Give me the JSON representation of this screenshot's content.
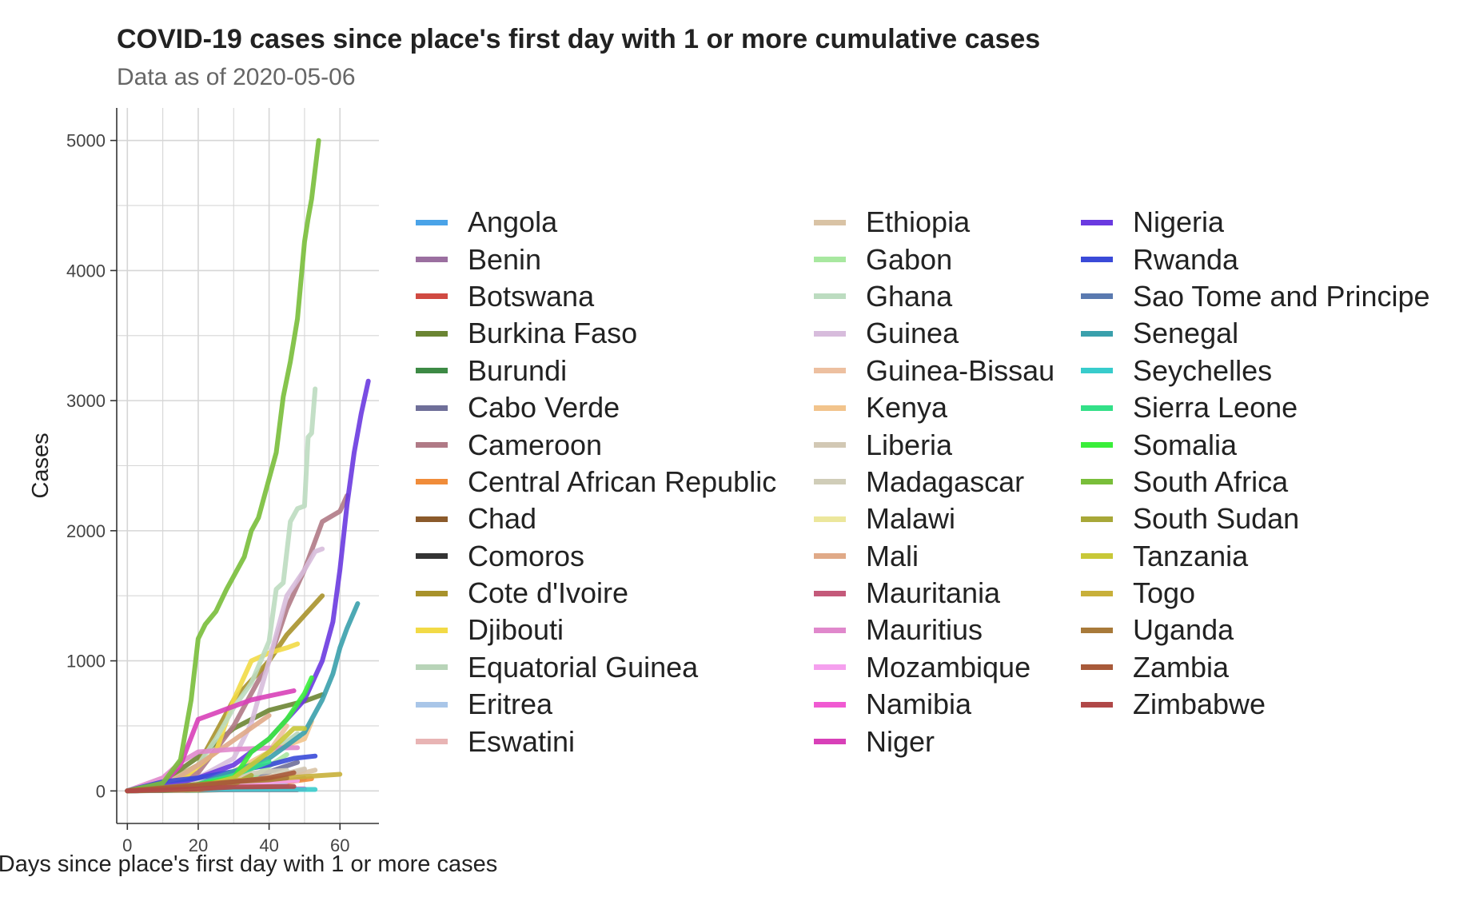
{
  "chart_data": {
    "type": "line",
    "title": "COVID-19 cases since place's first day with 1 or more cumulative cases",
    "subtitle": "Data as of 2020-05-06",
    "xlabel": "Days since place's first day with 1 or more cases",
    "ylabel": "Cases",
    "xlim": [
      -3,
      71
    ],
    "ylim": [
      -250,
      5250
    ],
    "x_ticks": [
      0,
      20,
      40,
      60
    ],
    "y_ticks": [
      0,
      1000,
      2000,
      3000,
      4000,
      5000
    ],
    "grid": true,
    "legend_placement": "right",
    "series": [
      {
        "name": "Angola",
        "color": "#4aa3e8",
        "x": [
          0,
          20,
          40,
          45
        ],
        "y": [
          1,
          10,
          30,
          36
        ]
      },
      {
        "name": "Benin",
        "color": "#9b6fa0",
        "x": [
          0,
          20,
          40,
          50
        ],
        "y": [
          1,
          20,
          60,
          96
        ]
      },
      {
        "name": "Botswana",
        "color": "#d04a42",
        "x": [
          0,
          20,
          38
        ],
        "y": [
          1,
          10,
          23
        ]
      },
      {
        "name": "Burkina Faso",
        "color": "#6b8533",
        "x": [
          0,
          10,
          20,
          30,
          40,
          50,
          55
        ],
        "y": [
          1,
          70,
          260,
          480,
          620,
          690,
          740
        ]
      },
      {
        "name": "Burundi",
        "color": "#3d8a45",
        "x": [
          0,
          20,
          40
        ],
        "y": [
          1,
          5,
          15
        ]
      },
      {
        "name": "Cabo Verde",
        "color": "#6f6f99",
        "x": [
          0,
          20,
          35,
          48
        ],
        "y": [
          1,
          10,
          100,
          220
        ]
      },
      {
        "name": "Cameroon",
        "color": "#b07a86",
        "x": [
          0,
          10,
          20,
          30,
          40,
          45,
          50,
          55,
          60,
          62
        ],
        "y": [
          1,
          40,
          140,
          500,
          1000,
          1400,
          1700,
          2070,
          2150,
          2270
        ]
      },
      {
        "name": "Central African Republic",
        "color": "#f08c3a",
        "x": [
          0,
          20,
          40,
          52
        ],
        "y": [
          1,
          10,
          50,
          94
        ]
      },
      {
        "name": "Chad",
        "color": "#8b5a2b",
        "x": [
          0,
          20,
          35,
          40
        ],
        "y": [
          1,
          10,
          50,
          75
        ]
      },
      {
        "name": "Comoros",
        "color": "#333333",
        "x": [
          0,
          5,
          8
        ],
        "y": [
          1,
          3,
          8
        ]
      },
      {
        "name": "Cote d'Ivoire",
        "color": "#a8922b",
        "x": [
          0,
          10,
          20,
          30,
          40,
          45,
          50,
          55
        ],
        "y": [
          1,
          50,
          200,
          700,
          1000,
          1200,
          1350,
          1500
        ]
      },
      {
        "name": "Djibouti",
        "color": "#f2da46",
        "x": [
          0,
          15,
          25,
          30,
          35,
          40,
          45,
          48
        ],
        "y": [
          1,
          80,
          300,
          700,
          1000,
          1060,
          1100,
          1130
        ]
      },
      {
        "name": "Equatorial Guinea",
        "color": "#b8d4b8",
        "x": [
          0,
          20,
          30,
          40,
          45,
          48
        ],
        "y": [
          1,
          20,
          40,
          300,
          380,
          440
        ]
      },
      {
        "name": "Eritrea",
        "color": "#a9c6e8",
        "x": [
          0,
          20,
          35,
          45
        ],
        "y": [
          1,
          20,
          39,
          39
        ]
      },
      {
        "name": "Eswatini",
        "color": "#e8b4b4",
        "x": [
          0,
          20,
          40,
          50
        ],
        "y": [
          1,
          10,
          70,
          160
        ]
      },
      {
        "name": "Ethiopia",
        "color": "#d9c3a5",
        "x": [
          0,
          20,
          30,
          40,
          50,
          53
        ],
        "y": [
          1,
          20,
          60,
          110,
          140,
          160
        ]
      },
      {
        "name": "Gabon",
        "color": "#a8e8a0",
        "x": [
          0,
          20,
          35,
          45
        ],
        "y": [
          1,
          20,
          100,
          280
        ]
      },
      {
        "name": "Ghana",
        "color": "#bcdcc0",
        "x": [
          0,
          10,
          20,
          25,
          30,
          35,
          40,
          42,
          44,
          46,
          48,
          50,
          51,
          52,
          53
        ],
        "y": [
          1,
          40,
          200,
          400,
          640,
          830,
          1150,
          1550,
          1600,
          2070,
          2170,
          2190,
          2720,
          2750,
          3090
        ]
      },
      {
        "name": "Guinea",
        "color": "#d7bcdc",
        "x": [
          0,
          10,
          20,
          30,
          35,
          40,
          45,
          50,
          53,
          55
        ],
        "y": [
          1,
          20,
          100,
          250,
          520,
          1000,
          1500,
          1700,
          1840,
          1860
        ]
      },
      {
        "name": "Guinea-Bissau",
        "color": "#edc0a0",
        "x": [
          0,
          20,
          30,
          40,
          45
        ],
        "y": [
          1,
          30,
          50,
          300,
          500
        ]
      },
      {
        "name": "Kenya",
        "color": "#f2c48c",
        "x": [
          0,
          20,
          30,
          40,
          50,
          52
        ],
        "y": [
          1,
          30,
          150,
          300,
          400,
          535
        ]
      },
      {
        "name": "Liberia",
        "color": "#d2c8b4",
        "x": [
          0,
          20,
          30,
          40,
          50
        ],
        "y": [
          1,
          10,
          50,
          100,
          170
        ]
      },
      {
        "name": "Madagascar",
        "color": "#d0cdb8",
        "x": [
          0,
          20,
          30,
          40,
          45
        ],
        "y": [
          1,
          80,
          120,
          150,
          158
        ]
      },
      {
        "name": "Malawi",
        "color": "#ece79c",
        "x": [
          0,
          20,
          30,
          35
        ],
        "y": [
          1,
          10,
          30,
          41
        ]
      },
      {
        "name": "Mali",
        "color": "#e0aa88",
        "x": [
          0,
          10,
          20,
          30,
          40
        ],
        "y": [
          1,
          30,
          200,
          390,
          580
        ]
      },
      {
        "name": "Mauritania",
        "color": "#c45a7a",
        "x": [
          0,
          20,
          40,
          48
        ],
        "y": [
          1,
          8,
          8,
          8
        ]
      },
      {
        "name": "Mauritius",
        "color": "#e088cc",
        "x": [
          0,
          10,
          15,
          20,
          30,
          40,
          48
        ],
        "y": [
          1,
          100,
          220,
          300,
          320,
          330,
          332
        ]
      },
      {
        "name": "Mozambique",
        "color": "#f5a0ee",
        "x": [
          0,
          20,
          40,
          48
        ],
        "y": [
          1,
          10,
          70,
          80
        ]
      },
      {
        "name": "Namibia",
        "color": "#f05ad2",
        "x": [
          0,
          20,
          40,
          50
        ],
        "y": [
          1,
          16,
          16,
          16
        ]
      },
      {
        "name": "Niger",
        "color": "#d840b8",
        "x": [
          0,
          10,
          15,
          20,
          25,
          30,
          35,
          40,
          47
        ],
        "y": [
          1,
          50,
          200,
          550,
          600,
          650,
          700,
          730,
          770
        ]
      },
      {
        "name": "Nigeria",
        "color": "#6a3ae0",
        "x": [
          0,
          10,
          20,
          30,
          40,
          50,
          55,
          58,
          60,
          62,
          64,
          66,
          68
        ],
        "y": [
          1,
          30,
          100,
          200,
          400,
          700,
          1000,
          1300,
          1700,
          2200,
          2600,
          2900,
          3150
        ]
      },
      {
        "name": "Rwanda",
        "color": "#3a4ad8",
        "x": [
          0,
          10,
          20,
          30,
          40,
          47,
          53
        ],
        "y": [
          1,
          70,
          100,
          150,
          200,
          250,
          268
        ]
      },
      {
        "name": "Sao Tome and Principe",
        "color": "#5a7ab0",
        "x": [
          0,
          10,
          20,
          25
        ],
        "y": [
          1,
          4,
          20,
          23
        ]
      },
      {
        "name": "Senegal",
        "color": "#3aa0ac",
        "x": [
          0,
          20,
          30,
          40,
          45,
          50,
          55,
          58,
          60,
          62,
          65
        ],
        "y": [
          1,
          50,
          150,
          250,
          350,
          450,
          700,
          900,
          1100,
          1250,
          1440
        ]
      },
      {
        "name": "Seychelles",
        "color": "#38cccc",
        "x": [
          0,
          10,
          20,
          40,
          53
        ],
        "y": [
          1,
          7,
          11,
          11,
          11
        ]
      },
      {
        "name": "Sierra Leone",
        "color": "#33e088",
        "x": [
          0,
          10,
          20,
          30,
          40
        ],
        "y": [
          1,
          10,
          50,
          120,
          225
        ]
      },
      {
        "name": "Somalia",
        "color": "#3aee3a",
        "x": [
          0,
          10,
          20,
          30,
          35,
          40,
          45,
          50,
          52
        ],
        "y": [
          1,
          10,
          50,
          100,
          300,
          400,
          550,
          750,
          870
        ]
      },
      {
        "name": "South Africa",
        "color": "#79be3a",
        "x": [
          0,
          10,
          15,
          18,
          20,
          22,
          25,
          28,
          30,
          33,
          35,
          37,
          40,
          42,
          44,
          46,
          48,
          50,
          51,
          52,
          54
        ],
        "y": [
          1,
          60,
          240,
          700,
          1170,
          1280,
          1380,
          1550,
          1650,
          1800,
          2000,
          2100,
          2400,
          2600,
          3030,
          3300,
          3630,
          4220,
          4400,
          4550,
          5000
        ]
      },
      {
        "name": "South Sudan",
        "color": "#a8a838",
        "x": [
          0,
          20,
          30,
          35
        ],
        "y": [
          1,
          10,
          50,
          120
        ]
      },
      {
        "name": "Tanzania",
        "color": "#c8c838",
        "x": [
          0,
          20,
          30,
          40,
          47,
          50
        ],
        "y": [
          1,
          30,
          100,
          300,
          480,
          480
        ]
      },
      {
        "name": "Togo",
        "color": "#c8b03a",
        "x": [
          0,
          20,
          30,
          40,
          50,
          60
        ],
        "y": [
          1,
          40,
          80,
          90,
          110,
          128
        ]
      },
      {
        "name": "Uganda",
        "color": "#a87a3a",
        "x": [
          0,
          20,
          30,
          40,
          45
        ],
        "y": [
          1,
          50,
          70,
          85,
          100
        ]
      },
      {
        "name": "Zambia",
        "color": "#a85a3a",
        "x": [
          0,
          20,
          40,
          47
        ],
        "y": [
          1,
          40,
          100,
          140
        ]
      },
      {
        "name": "Zimbabwe",
        "color": "#b04848",
        "x": [
          0,
          20,
          30,
          47
        ],
        "y": [
          1,
          15,
          30,
          34
        ]
      }
    ]
  }
}
